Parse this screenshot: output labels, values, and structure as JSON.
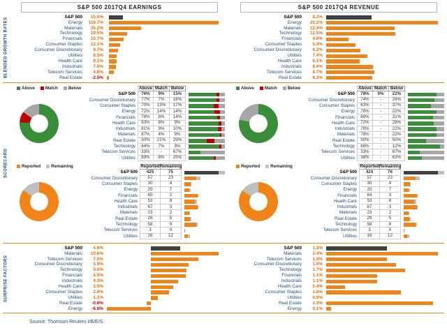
{
  "source": "Source: Thomson Reuters I/B/E/S",
  "sections": {
    "growth": "BLENDED GROWTH RATES",
    "scorecard": "SCORECARD",
    "surprise": "SURPRISE FACTORS"
  },
  "colors": {
    "orange": "#F08418",
    "value_orange": "#E36C0A",
    "dark": "#404040",
    "green": "#3A8E3A",
    "red": "#C00000",
    "gray": "#A6A6A6",
    "light_gray": "#BFBFBF",
    "blue": "#1F4E79"
  },
  "chart_data": [
    {
      "panel": "earnings",
      "title": "S&P 500 2017Q4 EARNINGS",
      "growth": {
        "type": "bar",
        "rows": [
          [
            "S&P 500",
            "15.0%"
          ],
          [
            "Energy",
            "119.7%"
          ],
          [
            "Materials",
            "35.2%"
          ],
          [
            "Technology",
            "19.5%"
          ],
          [
            "Financials",
            "15.7%"
          ],
          [
            "Consumer Staples",
            "12.1%"
          ],
          [
            "Consumer Discretionary",
            "9.7%"
          ],
          [
            "Utilities",
            "8.5%"
          ],
          [
            "Health Care",
            "8.1%"
          ],
          [
            "Industrials",
            "7.6%"
          ],
          [
            "Telecom Services",
            "4.8%"
          ],
          [
            "Real Estate",
            "-2.5%"
          ]
        ]
      },
      "scorecard_beat": {
        "type": "table",
        "legend": [
          "Above",
          "Match",
          "Below"
        ],
        "headers": [
          "Above",
          "Match",
          "Below"
        ],
        "rows": [
          [
            "S&P 500",
            "76%",
            "9%",
            "15%"
          ],
          [
            "Consumer Discretionary",
            "77%",
            "7%",
            "16%"
          ],
          [
            "Consumer Staples",
            "70%",
            "13%",
            "17%"
          ],
          [
            "Energy",
            "72%",
            "14%",
            "14%"
          ],
          [
            "Financials",
            "78%",
            "8%",
            "14%"
          ],
          [
            "Health Care",
            "83%",
            "8%",
            "9%"
          ],
          [
            "Industrials",
            "81%",
            "9%",
            "10%"
          ],
          [
            "Materials",
            "87%",
            "4%",
            "9%"
          ],
          [
            "Real Estate",
            "50%",
            "21%",
            "29%"
          ],
          [
            "Technology",
            "84%",
            "7%",
            "9%"
          ],
          [
            "Telecom Services",
            "33%",
            "-",
            "67%"
          ],
          [
            "Utilities",
            "69%",
            "6%",
            "25%"
          ]
        ]
      },
      "scorecard_reported": {
        "type": "table",
        "legend": [
          "Reported",
          "Remaining"
        ],
        "headers": [
          "Reported",
          "Remaining"
        ],
        "rows": [
          [
            "S&P 500",
            "425",
            "75"
          ],
          [
            "Consumer Discretionary",
            "57",
            "23"
          ],
          [
            "Consumer Staples",
            "30",
            "4"
          ],
          [
            "Energy",
            "25",
            "7"
          ],
          [
            "Financials",
            "65",
            "2"
          ],
          [
            "Health Care",
            "53",
            "8"
          ],
          [
            "Industrials",
            "67",
            "3"
          ],
          [
            "Materials",
            "23",
            "2"
          ],
          [
            "Real Estate",
            "28",
            "5"
          ],
          [
            "Technology",
            "58",
            "9"
          ],
          [
            "Telecom Services",
            "3",
            "0"
          ],
          [
            "Utilities",
            "16",
            "12"
          ]
        ]
      },
      "surprise": {
        "type": "bar",
        "rows": [
          [
            "S&P 500",
            "4.6%"
          ],
          [
            "Materials",
            "10.6%"
          ],
          [
            "Telecom Services",
            "7.5%"
          ],
          [
            "Consumer Discretionary",
            "5.9%"
          ],
          [
            "Technology",
            "5.6%"
          ],
          [
            "Financials",
            "5.5%"
          ],
          [
            "Industrials",
            "4.3%"
          ],
          [
            "Health Care",
            "3.5%"
          ],
          [
            "Consumer Staples",
            "2.9%"
          ],
          [
            "Utilities",
            "1.1%"
          ],
          [
            "Real Estate",
            "-0.6%"
          ],
          [
            "Energy",
            "-6.8%"
          ]
        ]
      }
    },
    {
      "panel": "revenue",
      "title": "S&P 500 2017Q4 REVENUE",
      "growth": {
        "type": "bar",
        "rows": [
          [
            "S&P 500",
            "8.2%"
          ],
          [
            "Energy",
            "20.2%"
          ],
          [
            "Materials",
            "12.4%"
          ],
          [
            "Technology",
            "12.5%"
          ],
          [
            "Financials",
            "4.0%"
          ],
          [
            "Consumer Staples",
            "5.3%"
          ],
          [
            "Consumer Discretionary",
            "6.2%"
          ],
          [
            "Utilities",
            "7.4%"
          ],
          [
            "Health Care",
            "6.1%"
          ],
          [
            "Industrials",
            "8.4%"
          ],
          [
            "Telecom Services",
            "8.7%"
          ],
          [
            "Real Estate",
            "8.3%"
          ]
        ]
      },
      "scorecard_beat": {
        "type": "table",
        "legend": [
          "Above",
          "Match",
          "Below"
        ],
        "headers": [
          "Above",
          "Match",
          "Below"
        ],
        "rows": [
          [
            "S&P 500",
            "78%",
            "0%",
            "22%"
          ],
          [
            "Consumer Discretionary",
            "74%",
            "-",
            "26%"
          ],
          [
            "Consumer Staples",
            "63%",
            "-",
            "37%"
          ],
          [
            "Energy",
            "78%",
            "-",
            "22%"
          ],
          [
            "Financials",
            "69%",
            "-",
            "31%"
          ],
          [
            "Health Care",
            "72%",
            "-",
            "28%"
          ],
          [
            "Industrials",
            "78%",
            "-",
            "22%"
          ],
          [
            "Materials",
            "78%",
            "-",
            "22%"
          ],
          [
            "Real Estate",
            "50%",
            "-",
            "50%"
          ],
          [
            "Technology",
            "88%",
            "-",
            "12%"
          ],
          [
            "Telecom Services",
            "33%",
            "-",
            "67%"
          ],
          [
            "Utilities",
            "38%",
            "-",
            "63%"
          ]
        ]
      },
      "scorecard_reported": {
        "type": "table",
        "legend": [
          "Reported",
          "Remaining"
        ],
        "headers": [
          "Reported",
          "Remaining"
        ],
        "rows": [
          [
            "S&P 500",
            "424",
            "76"
          ],
          [
            "Consumer Discretionary",
            "57",
            "23"
          ],
          [
            "Consumer Staples",
            "30",
            "4"
          ],
          [
            "Energy",
            "25",
            "7"
          ],
          [
            "Financials",
            "64",
            "3"
          ],
          [
            "Health Care",
            "53",
            "8"
          ],
          [
            "Industrials",
            "67",
            "3"
          ],
          [
            "Materials",
            "23",
            "2"
          ],
          [
            "Real Estate",
            "28",
            "5"
          ],
          [
            "Technology",
            "58",
            "9"
          ],
          [
            "Telecom Services",
            "3",
            "0"
          ],
          [
            "Utilities",
            "16",
            "12"
          ]
        ]
      },
      "surprise": {
        "type": "bar",
        "rows": [
          [
            "S&P 500",
            "1.3%"
          ],
          [
            "Materials",
            "2.4%"
          ],
          [
            "Telecom Services",
            "1.3%"
          ],
          [
            "Consumer Discretionary",
            "1.5%"
          ],
          [
            "Technology",
            "1.7%"
          ],
          [
            "Financials",
            "1.1%"
          ],
          [
            "Industrials",
            "1.1%"
          ],
          [
            "Health Care",
            "0.4%"
          ],
          [
            "Consumer Staples",
            "1.6%"
          ],
          [
            "Utilities",
            "0.0%"
          ],
          [
            "Real Estate",
            "2.3%"
          ],
          [
            "Energy",
            "0.1%"
          ]
        ]
      }
    }
  ]
}
